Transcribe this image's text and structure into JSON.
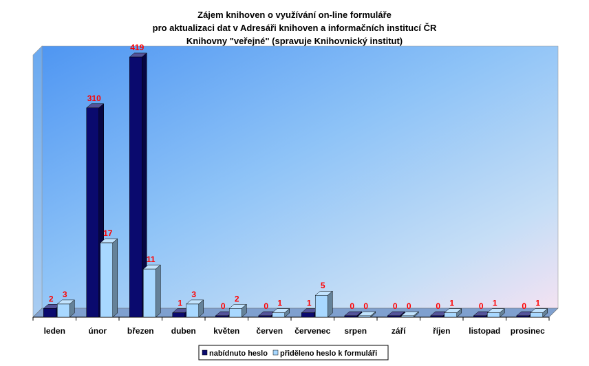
{
  "chart_data": {
    "type": "bar",
    "title_lines": [
      "Zájem knihoven o využívání on-line formuláře",
      "pro aktualizaci dat v Adresáři knihoven a informačních institucí ČR",
      "Knihovny \"veřejné\" (spravuje Knihovnický institut)"
    ],
    "categories": [
      "leden",
      "únor",
      "březen",
      "duben",
      "květen",
      "červen",
      "červenec",
      "srpen",
      "září",
      "říjen",
      "listopad",
      "prosinec"
    ],
    "series": [
      {
        "name": "nabídnuto heslo",
        "values": [
          2,
          310,
          419,
          1,
          0,
          0,
          1,
          0,
          0,
          0,
          0,
          0
        ],
        "color": "#0a0a6e"
      },
      {
        "name": "přiděleno heslo k formuláři",
        "values": [
          3,
          17,
          11,
          3,
          2,
          1,
          5,
          0,
          0,
          1,
          1,
          1
        ],
        "color": "#a8d8ff"
      }
    ],
    "value_scale": "break between 17 and 310",
    "grid": false,
    "legend_position": "bottom-center",
    "data_label_color": "#ff0000",
    "background_gradient": [
      "#5aa0f5",
      "#a8d4f6",
      "#f5e4f2"
    ]
  }
}
